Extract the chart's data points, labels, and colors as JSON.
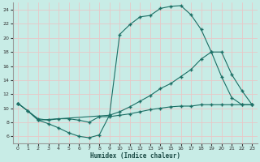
{
  "xlabel": "Humidex (Indice chaleur)",
  "bg_color": "#c8ece6",
  "grid_color": "#e8c8c8",
  "line_color": "#1a6e64",
  "xlim": [
    -0.5,
    23.5
  ],
  "ylim": [
    5.0,
    25.0
  ],
  "yticks": [
    6,
    8,
    10,
    12,
    14,
    16,
    18,
    20,
    22,
    24
  ],
  "xticks": [
    0,
    1,
    2,
    3,
    4,
    5,
    6,
    7,
    8,
    9,
    10,
    11,
    12,
    13,
    14,
    15,
    16,
    17,
    18,
    19,
    20,
    21,
    22,
    23
  ],
  "curve1_x": [
    0,
    1,
    2,
    3,
    4,
    5,
    6,
    7,
    8,
    9,
    10,
    11,
    12,
    13,
    14,
    15,
    16,
    17,
    18,
    19,
    20,
    21,
    22,
    23
  ],
  "curve1_y": [
    10.7,
    9.6,
    8.3,
    7.8,
    7.2,
    6.5,
    6.0,
    5.8,
    6.2,
    9.0,
    20.5,
    21.9,
    23.0,
    23.2,
    24.2,
    24.5,
    24.6,
    23.3,
    21.2,
    18.0,
    14.5,
    11.5,
    10.5,
    10.5
  ],
  "curve2_x": [
    0,
    1,
    2,
    9,
    10,
    11,
    12,
    13,
    14,
    15,
    16,
    17,
    18,
    19,
    20,
    21,
    22,
    23
  ],
  "curve2_y": [
    10.7,
    9.6,
    8.3,
    9.0,
    9.5,
    10.2,
    11.0,
    11.8,
    12.8,
    13.5,
    14.5,
    15.5,
    17.0,
    18.0,
    18.0,
    14.8,
    12.5,
    10.5
  ],
  "curve3_x": [
    0,
    2,
    3,
    4,
    5,
    6,
    7,
    8,
    9,
    10,
    11,
    12,
    13,
    14,
    15,
    16,
    17,
    18,
    19,
    20,
    21,
    22,
    23
  ],
  "curve3_y": [
    10.7,
    8.5,
    8.3,
    8.5,
    8.5,
    8.3,
    8.0,
    8.8,
    8.8,
    9.0,
    9.2,
    9.5,
    9.8,
    10.0,
    10.2,
    10.3,
    10.3,
    10.5,
    10.5,
    10.5,
    10.5,
    10.5,
    10.5
  ]
}
